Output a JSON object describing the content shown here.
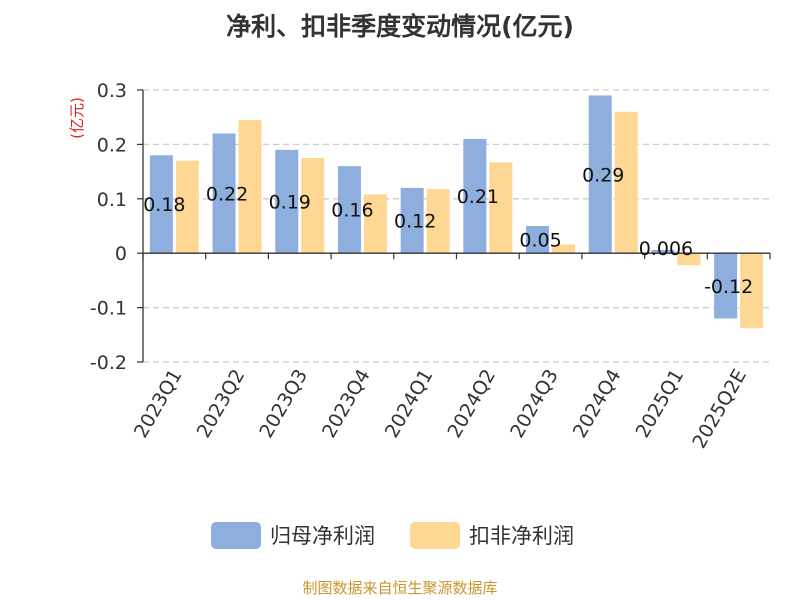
{
  "chart_data": {
    "type": "bar",
    "title": "净利、扣非季度变动情况(亿元)",
    "ylabel": "(亿元)",
    "xlabel": "",
    "categories": [
      "2023Q1",
      "2023Q2",
      "2023Q3",
      "2023Q4",
      "2024Q1",
      "2024Q2",
      "2024Q3",
      "2024Q4",
      "2025Q1",
      "2025Q2E"
    ],
    "series": [
      {
        "name": "归母净利润",
        "color": "#8eaede",
        "values": [
          0.18,
          0.22,
          0.19,
          0.16,
          0.12,
          0.21,
          0.05,
          0.29,
          0.006,
          -0.12
        ],
        "labels": [
          "0.18",
          "0.22",
          "0.19",
          "0.16",
          "0.12",
          "0.21",
          "0.05",
          "0.29",
          "0.006",
          "-0.12"
        ]
      },
      {
        "name": "扣非净利润",
        "color": "#fed795",
        "values": [
          0.17,
          0.245,
          0.175,
          0.108,
          0.118,
          0.167,
          0.016,
          0.26,
          -0.022,
          -0.138
        ]
      }
    ],
    "ylim": [
      -0.2,
      0.3
    ],
    "yticks": [
      0.3,
      0.2,
      0.1,
      0,
      -0.2
    ],
    "ytick_labels": [
      "0.3",
      "0.2",
      "0.1",
      "0",
      "-0.2"
    ],
    "ygrid": [
      0.3,
      0.2,
      0.1,
      -0.1,
      -0.2
    ],
    "extra_tick_label": "-0.1",
    "grid": true,
    "legend_position": "bottom"
  },
  "source": "制图数据来自恒生聚源数据库"
}
